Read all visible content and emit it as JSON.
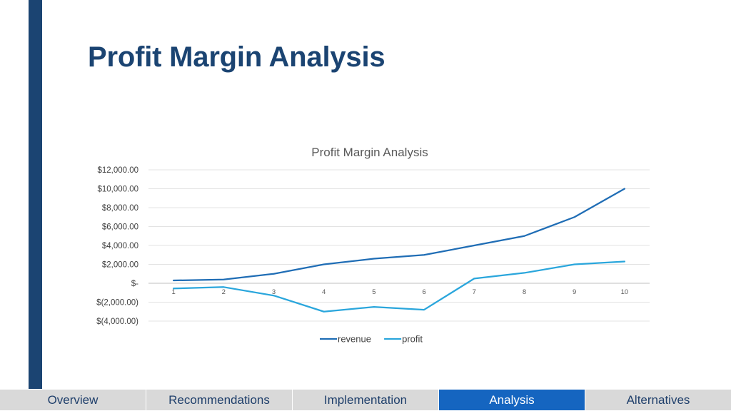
{
  "slide": {
    "title": "Profit Margin Analysis"
  },
  "colors": {
    "accent_bar": "#1b4472",
    "title": "#1b4472",
    "revenue": "#1f6db5",
    "profit": "#2aa6dc",
    "nav_inactive": "#d9d9d9",
    "nav_active": "#1565c0"
  },
  "nav": {
    "tabs": [
      {
        "label": "Overview",
        "active": false
      },
      {
        "label": "Recommendations",
        "active": false
      },
      {
        "label": "Implementation",
        "active": false
      },
      {
        "label": "Analysis",
        "active": true
      },
      {
        "label": "Alternatives",
        "active": false
      }
    ]
  },
  "chart_data": {
    "type": "line",
    "title": "Profit Margin Analysis",
    "xlabel": "",
    "ylabel": "",
    "x": [
      1,
      2,
      3,
      4,
      5,
      6,
      7,
      8,
      9,
      10
    ],
    "ylim": [
      -4000,
      12000
    ],
    "y_ticks": [
      12000,
      10000,
      8000,
      6000,
      4000,
      2000,
      0,
      -2000,
      -4000
    ],
    "y_tick_labels": [
      "$12,000.00",
      "$10,000.00",
      "$8,000.00",
      "$6,000.00",
      "$4,000.00",
      "$2,000.00",
      "$-",
      "$(2,000.00)",
      "$(4,000.00)"
    ],
    "grid": true,
    "legend": "bottom",
    "series": [
      {
        "name": "revenue",
        "color": "#1f6db5",
        "values": [
          300,
          400,
          1000,
          2000,
          2600,
          3000,
          4000,
          5000,
          7000,
          10000
        ]
      },
      {
        "name": "profit",
        "color": "#2aa6dc",
        "values": [
          -550,
          -400,
          -1300,
          -3000,
          -2500,
          -2800,
          500,
          1100,
          2000,
          2300
        ]
      }
    ]
  }
}
